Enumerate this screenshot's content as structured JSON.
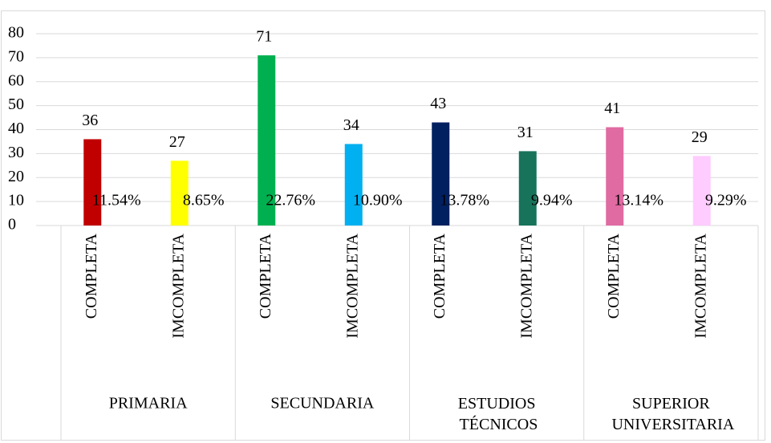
{
  "chart_data": {
    "type": "bar",
    "groups": [
      "PRIMARIA",
      "SECUNDARIA",
      "ESTUDIOS TÉCNICOS",
      "SUPERIOR UNIVERSITARIA"
    ],
    "categories": [
      "COMPLETA",
      "IMCOMPLETA",
      "COMPLETA",
      "IMCOMPLETA",
      "COMPLETA",
      "IMCOMPLETA",
      "COMPLETA",
      "IMCOMPLETA"
    ],
    "values": [
      36,
      27,
      71,
      34,
      43,
      31,
      41,
      29
    ],
    "percent_labels": [
      "11.54%",
      "8.65%",
      "22.76%",
      "10.90%",
      "13.78%",
      "9.94%",
      "13.14%",
      "9.29%"
    ],
    "colors": [
      "#c00000",
      "#ffff00",
      "#00b050",
      "#00b0f0",
      "#002060",
      "#17735a",
      "#e06aa2",
      "#ffccff"
    ],
    "ylim": [
      0,
      80
    ],
    "yticks": [
      0,
      10,
      20,
      30,
      40,
      50,
      60,
      70,
      80
    ],
    "grid": true
  }
}
